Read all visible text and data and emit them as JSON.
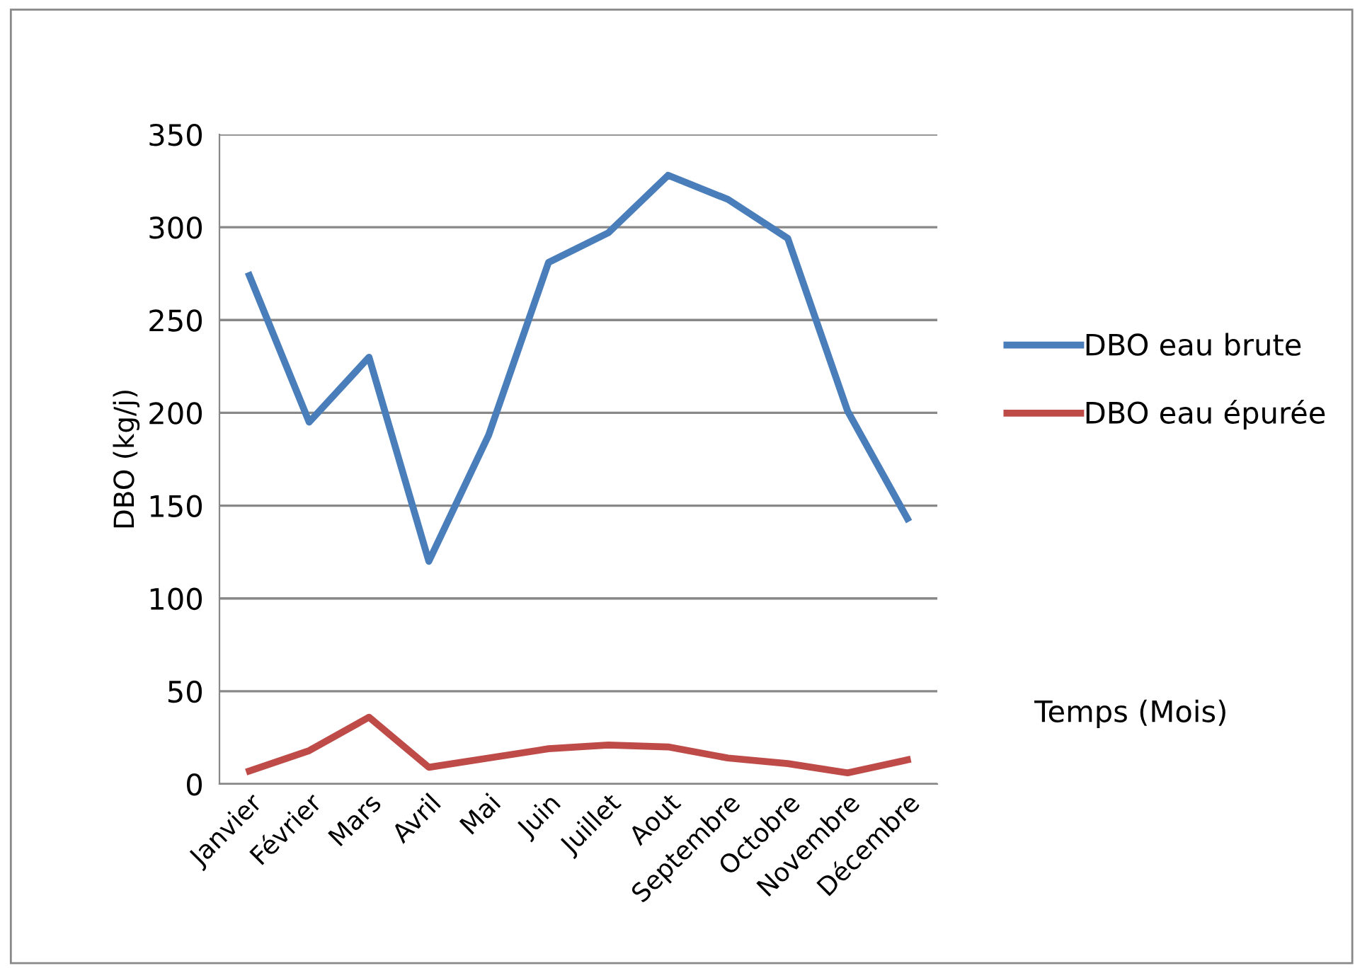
{
  "chart_data": {
    "type": "line",
    "ylabel": "DBO (kg/j)",
    "xlabel": "Temps (Mois)",
    "categories": [
      "Janvier",
      "Février",
      "Mars",
      "Avril",
      "Mai",
      "Juin",
      "Juillet",
      "Aout",
      "Septembre",
      "Octobre",
      "Novembre",
      "Décembre"
    ],
    "series": [
      {
        "name": "DBO eau brute",
        "color": "#4a7ebb",
        "values": [
          274,
          195,
          230,
          120,
          188,
          281,
          297,
          328,
          315,
          294,
          201,
          143
        ]
      },
      {
        "name": "DBO eau épurée",
        "color": "#be4b48",
        "values": [
          7,
          18,
          36,
          9,
          14,
          19,
          21,
          20,
          14,
          11,
          6,
          13
        ]
      }
    ],
    "ylim": [
      0,
      350
    ],
    "yticks": [
      0,
      50,
      100,
      150,
      200,
      250,
      300,
      350
    ],
    "grid": "y",
    "legend": "right",
    "marker": "none",
    "line_style": "solid"
  }
}
